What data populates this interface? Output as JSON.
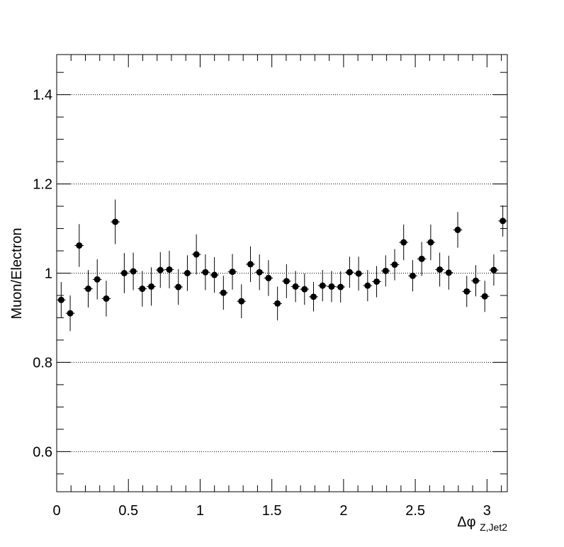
{
  "chart_data": {
    "type": "scatter",
    "title": "",
    "xlabel": {
      "main": "Δφ",
      "sub": "Z,Jet2"
    },
    "ylabel": "Muon/Electron",
    "xlim": [
      0,
      3.1416
    ],
    "ylim": [
      0.51,
      1.49
    ],
    "x_ticks": [
      0,
      0.5,
      1,
      1.5,
      2,
      2.5,
      3
    ],
    "x_tick_labels": [
      "0",
      "0.5",
      "1",
      "1.5",
      "2",
      "2.5",
      "3"
    ],
    "y_ticks": [
      0.6,
      0.8,
      1.0,
      1.2,
      1.4
    ],
    "y_tick_labels": [
      "0.6",
      "0.8",
      "1",
      "1.2",
      "1.4"
    ],
    "grid": {
      "x": false,
      "y": true
    },
    "marker_color": "#000000",
    "series": [
      {
        "bin_width": 0.0628,
        "x": [
          0.0314,
          0.0942,
          0.1571,
          0.2199,
          0.2827,
          0.3456,
          0.4084,
          0.4712,
          0.5341,
          0.5969,
          0.6597,
          0.7226,
          0.7854,
          0.8482,
          0.9111,
          0.9739,
          1.0367,
          1.0996,
          1.1624,
          1.2252,
          1.2881,
          1.3509,
          1.4137,
          1.4765,
          1.5394,
          1.6022,
          1.665,
          1.7279,
          1.7907,
          1.8535,
          1.9164,
          1.9792,
          2.042,
          2.1049,
          2.1677,
          2.2305,
          2.2934,
          2.3562,
          2.419,
          2.4819,
          2.5447,
          2.6075,
          2.6704,
          2.7332,
          2.796,
          2.8588,
          2.9217,
          2.9845,
          3.0473,
          3.1102
        ],
        "y": [
          0.94,
          0.91,
          1.062,
          0.965,
          0.986,
          0.943,
          1.115,
          1.0,
          1.004,
          0.965,
          0.97,
          1.007,
          1.008,
          0.969,
          1.0,
          1.042,
          1.002,
          0.996,
          0.956,
          1.003,
          0.937,
          1.02,
          1.002,
          0.989,
          0.932,
          0.982,
          0.97,
          0.964,
          0.947,
          0.972,
          0.97,
          0.969,
          1.002,
          0.999,
          0.972,
          0.981,
          1.005,
          1.019,
          1.069,
          0.994,
          1.032,
          1.069,
          1.008,
          1.001,
          1.097,
          0.959,
          0.983,
          0.948,
          1.007,
          1.117
        ],
        "yerr": [
          0.04,
          0.04,
          0.048,
          0.042,
          0.045,
          0.04,
          0.05,
          0.045,
          0.042,
          0.04,
          0.043,
          0.04,
          0.042,
          0.04,
          0.04,
          0.045,
          0.04,
          0.04,
          0.038,
          0.04,
          0.038,
          0.04,
          0.04,
          0.04,
          0.038,
          0.038,
          0.035,
          0.035,
          0.033,
          0.035,
          0.035,
          0.035,
          0.035,
          0.038,
          0.035,
          0.035,
          0.035,
          0.035,
          0.04,
          0.035,
          0.038,
          0.04,
          0.038,
          0.038,
          0.04,
          0.035,
          0.035,
          0.035,
          0.035,
          0.035
        ]
      }
    ]
  }
}
